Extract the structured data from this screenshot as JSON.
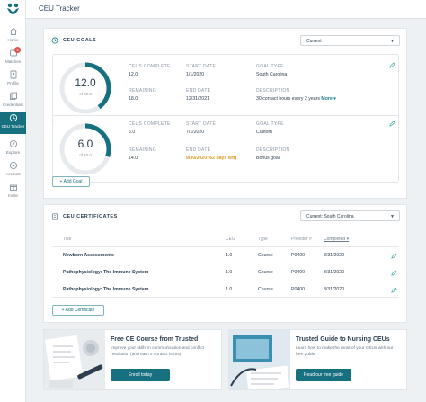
{
  "app": {
    "title": "CEU Tracker"
  },
  "nav": [
    {
      "label": "Home",
      "icon": "home-icon"
    },
    {
      "label": "Matches",
      "icon": "matches-icon",
      "badge": "4"
    },
    {
      "label": "Profile",
      "icon": "profile-icon"
    },
    {
      "label": "Credentials",
      "icon": "credentials-icon"
    },
    {
      "label": "CEU Tracker",
      "icon": "ceu-tracker-icon",
      "active": true
    },
    {
      "label": "Explore",
      "icon": "explore-icon"
    },
    {
      "label": "Account",
      "icon": "account-icon"
    },
    {
      "label": "Invite",
      "icon": "invite-icon"
    }
  ],
  "goals": {
    "title": "CEU GOALS",
    "filter": "Current",
    "labels": {
      "complete": "CEUS COMPLETE",
      "remaining": "REMAINING",
      "start": "START DATE",
      "end": "END DATE",
      "type": "GOAL TYPE",
      "description": "DESCRIPTION"
    },
    "items": [
      {
        "ring_value": "12.0",
        "ring_sub": "of 30.0",
        "progress": 0.4,
        "complete": "12.0",
        "remaining": "18.0",
        "start": "1/1/2020",
        "end": "12/31/2021",
        "type": "South Carolina",
        "description": "30 contact hours every 2 years",
        "more": "More ▾"
      },
      {
        "ring_value": "6.0",
        "ring_sub": "of 20.0",
        "progress": 0.3,
        "complete": "6.0",
        "remaining": "14.0",
        "start": "7/1/2020",
        "end": "9/30/2020 (62 days left)",
        "type": "Custom",
        "description": "Bonus goal"
      }
    ],
    "add_label": "+ Add Goal"
  },
  "certificates": {
    "title": "CEU CERTIFICATES",
    "filter": "Current: South Carolina",
    "headers": [
      "Title",
      "CEU",
      "Type",
      "Provider #",
      "Completed ▾"
    ],
    "rows": [
      {
        "title": "Newborn Assessments",
        "ceu": "1.0",
        "type": "Course",
        "provider": "P0400",
        "completed": "8/31/2020"
      },
      {
        "title": "Pathophysiology: The Immune System",
        "ceu": "1.0",
        "type": "Course",
        "provider": "P0400",
        "completed": "8/31/2020"
      },
      {
        "title": "Pathophysiology: The Immune System",
        "ceu": "1.0",
        "type": "Course",
        "provider": "P0400",
        "completed": "8/31/2020"
      }
    ],
    "add_label": "+ Add Certificate"
  },
  "promos": [
    {
      "title": "Free CE Course from Trusted",
      "text": "Improve your skills in communication and conflict resolution (and earn 4 contact hours)",
      "button": "Enroll today"
    },
    {
      "title": "Trusted Guide to Nursing CEUs",
      "text": "Learn how to make the most of your CEUs with our free guide",
      "button": "Read our free guide"
    }
  ],
  "colors": {
    "accent": "#17707f",
    "ring_track": "#e6eaed",
    "warn": "#d89a1c"
  }
}
